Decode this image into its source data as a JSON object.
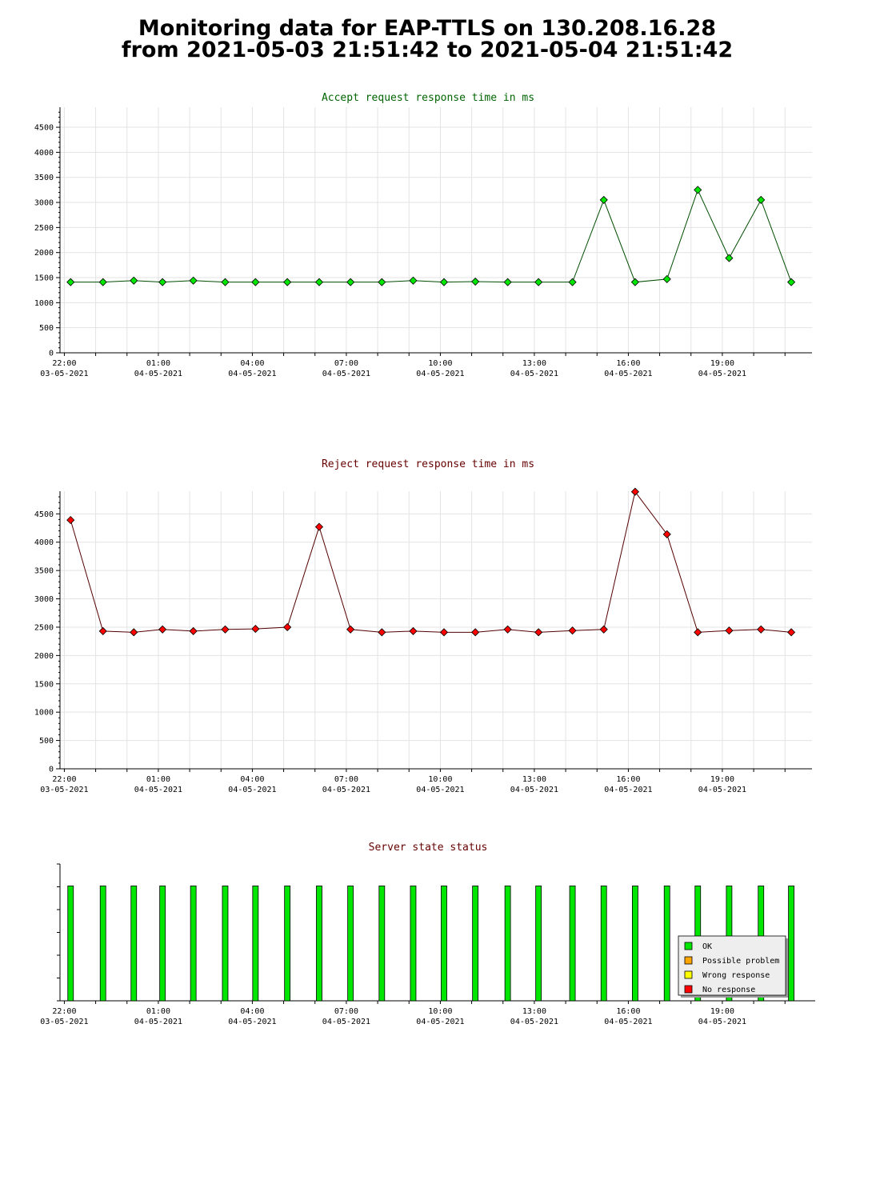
{
  "page": {
    "title_line1": "Monitoring data for EAP-TTLS on 130.208.16.28",
    "title_line2": "from 2021-05-03 21:51:42 to 2021-05-04 21:51:42"
  },
  "chart_data": [
    {
      "id": "accept",
      "type": "line",
      "title": "Accept request response time in ms",
      "title_color": "#006400",
      "line_color": "#004d00",
      "marker_color": "#00e600",
      "ylim": [
        0,
        4900
      ],
      "yticks": [
        0,
        500,
        1000,
        1500,
        2000,
        2500,
        3000,
        3500,
        4000,
        4500
      ],
      "xlim": [
        "2021-05-03 21:51:42",
        "2021-05-04 21:51:42"
      ],
      "xtick_labels": [
        {
          "time": "22:00",
          "date": "03-05-2021"
        },
        {
          "time": "01:00",
          "date": "04-05-2021"
        },
        {
          "time": "04:00",
          "date": "04-05-2021"
        },
        {
          "time": "07:00",
          "date": "04-05-2021"
        },
        {
          "time": "10:00",
          "date": "04-05-2021"
        },
        {
          "time": "13:00",
          "date": "04-05-2021"
        },
        {
          "time": "16:00",
          "date": "04-05-2021"
        },
        {
          "time": "19:00",
          "date": "04-05-2021"
        }
      ],
      "grid": true,
      "series": [
        {
          "x": [
            "2021-05-03 22:12",
            "2021-05-03 23:14",
            "2021-05-04 00:13",
            "2021-05-04 01:08",
            "2021-05-04 02:07",
            "2021-05-04 03:08",
            "2021-05-04 04:06",
            "2021-05-04 05:07",
            "2021-05-04 06:08",
            "2021-05-04 07:08",
            "2021-05-04 08:08",
            "2021-05-04 09:08",
            "2021-05-04 10:07",
            "2021-05-04 11:07",
            "2021-05-04 12:09",
            "2021-05-04 13:08",
            "2021-05-04 14:13",
            "2021-05-04 15:13",
            "2021-05-04 16:13",
            "2021-05-04 17:14",
            "2021-05-04 18:13",
            "2021-05-04 19:13",
            "2021-05-04 20:14",
            "2021-05-04 21:12"
          ],
          "y": [
            1410,
            1410,
            1440,
            1410,
            1440,
            1410,
            1410,
            1410,
            1410,
            1410,
            1410,
            1440,
            1410,
            1420,
            1410,
            1410,
            1410,
            3050,
            1410,
            1470,
            3250,
            1890,
            3050,
            1410
          ]
        }
      ]
    },
    {
      "id": "reject",
      "type": "line",
      "title": "Reject request response time in ms",
      "title_color": "#660000",
      "line_color": "#550000",
      "marker_color": "#ff0000",
      "ylim": [
        0,
        4900
      ],
      "yticks": [
        0,
        500,
        1000,
        1500,
        2000,
        2500,
        3000,
        3500,
        4000,
        4500
      ],
      "xlim": [
        "2021-05-03 21:51:42",
        "2021-05-04 21:51:42"
      ],
      "xtick_labels": [
        {
          "time": "22:00",
          "date": "03-05-2021"
        },
        {
          "time": "01:00",
          "date": "04-05-2021"
        },
        {
          "time": "04:00",
          "date": "04-05-2021"
        },
        {
          "time": "07:00",
          "date": "04-05-2021"
        },
        {
          "time": "10:00",
          "date": "04-05-2021"
        },
        {
          "time": "13:00",
          "date": "04-05-2021"
        },
        {
          "time": "16:00",
          "date": "04-05-2021"
        },
        {
          "time": "19:00",
          "date": "04-05-2021"
        }
      ],
      "grid": true,
      "series": [
        {
          "x": [
            "2021-05-03 22:12",
            "2021-05-03 23:14",
            "2021-05-04 00:13",
            "2021-05-04 01:08",
            "2021-05-04 02:07",
            "2021-05-04 03:08",
            "2021-05-04 04:06",
            "2021-05-04 05:07",
            "2021-05-04 06:08",
            "2021-05-04 07:08",
            "2021-05-04 08:08",
            "2021-05-04 09:08",
            "2021-05-04 10:07",
            "2021-05-04 11:07",
            "2021-05-04 12:09",
            "2021-05-04 13:08",
            "2021-05-04 14:13",
            "2021-05-04 15:13",
            "2021-05-04 16:13",
            "2021-05-04 17:14",
            "2021-05-04 18:13",
            "2021-05-04 19:13",
            "2021-05-04 20:14",
            "2021-05-04 21:12"
          ],
          "y": [
            4390,
            2430,
            2410,
            2460,
            2430,
            2460,
            2470,
            2500,
            4270,
            2460,
            2410,
            2430,
            2410,
            2410,
            2460,
            2410,
            2440,
            2460,
            4890,
            4140,
            2410,
            2440,
            2460,
            2410
          ]
        }
      ]
    },
    {
      "id": "status",
      "type": "bar",
      "title": "Server state status",
      "title_color": "#660000",
      "bar_color": "#00e600",
      "level": 0.84,
      "xlim": [
        "2021-05-03 21:51:42",
        "2021-05-04 21:51:42"
      ],
      "xtick_labels": [
        {
          "time": "22:00",
          "date": "03-05-2021"
        },
        {
          "time": "01:00",
          "date": "04-05-2021"
        },
        {
          "time": "04:00",
          "date": "04-05-2021"
        },
        {
          "time": "07:00",
          "date": "04-05-2021"
        },
        {
          "time": "10:00",
          "date": "04-05-2021"
        },
        {
          "time": "13:00",
          "date": "04-05-2021"
        },
        {
          "time": "16:00",
          "date": "04-05-2021"
        },
        {
          "time": "19:00",
          "date": "04-05-2021"
        }
      ],
      "x": [
        "2021-05-03 22:12",
        "2021-05-03 23:14",
        "2021-05-04 00:13",
        "2021-05-04 01:08",
        "2021-05-04 02:07",
        "2021-05-04 03:08",
        "2021-05-04 04:06",
        "2021-05-04 05:07",
        "2021-05-04 06:08",
        "2021-05-04 07:08",
        "2021-05-04 08:08",
        "2021-05-04 09:08",
        "2021-05-04 10:07",
        "2021-05-04 11:07",
        "2021-05-04 12:09",
        "2021-05-04 13:08",
        "2021-05-04 14:13",
        "2021-05-04 15:13",
        "2021-05-04 16:13",
        "2021-05-04 17:14",
        "2021-05-04 18:13",
        "2021-05-04 19:13",
        "2021-05-04 20:14",
        "2021-05-04 21:12"
      ],
      "status": [
        "OK",
        "OK",
        "OK",
        "OK",
        "OK",
        "OK",
        "OK",
        "OK",
        "OK",
        "OK",
        "OK",
        "OK",
        "OK",
        "OK",
        "OK",
        "OK",
        "OK",
        "OK",
        "OK",
        "OK",
        "OK",
        "OK",
        "OK",
        "OK"
      ],
      "legend": [
        {
          "label": "OK",
          "color": "#00e600"
        },
        {
          "label": "Possible problem",
          "color": "#ffa500"
        },
        {
          "label": "Wrong response",
          "color": "#ffff00"
        },
        {
          "label": "No response",
          "color": "#ff0000"
        }
      ],
      "legend_position": "bottom-right"
    }
  ]
}
